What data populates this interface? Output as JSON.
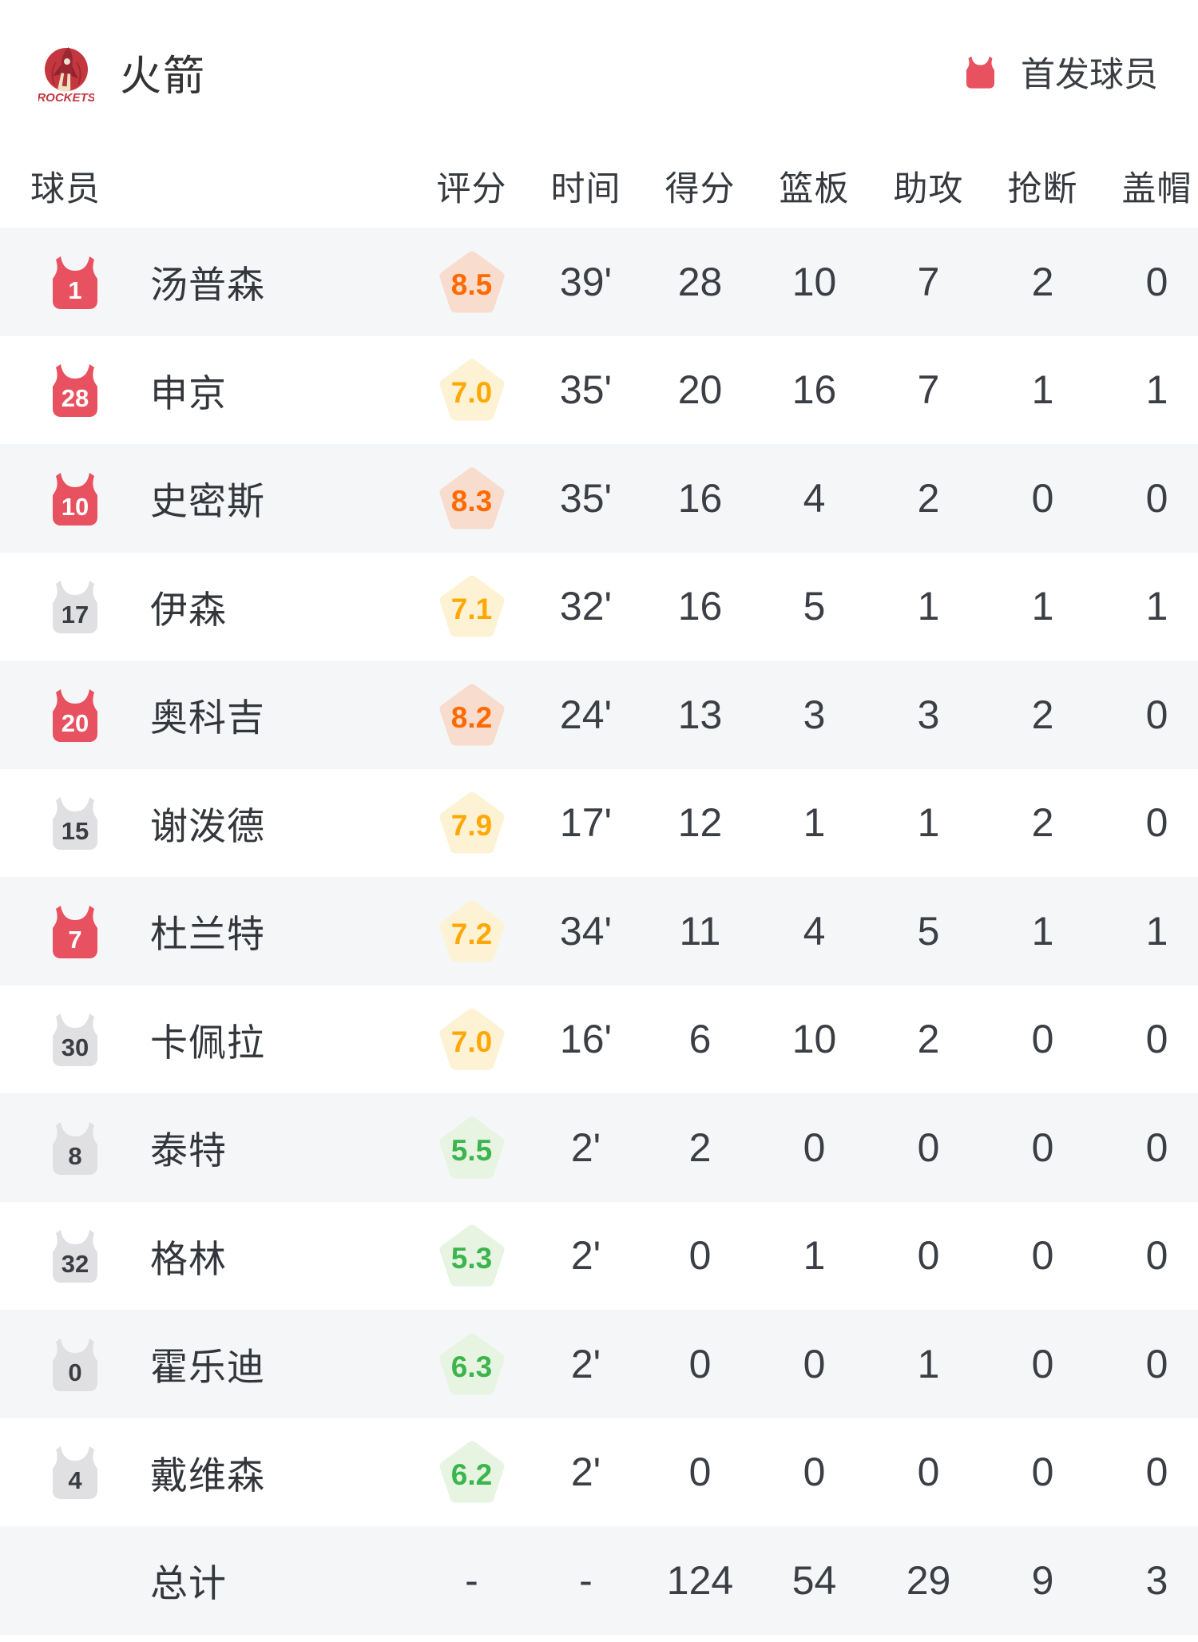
{
  "header": {
    "team_name": "火箭",
    "logo_text": "ROCKETS",
    "legend_label": "首发球员"
  },
  "table": {
    "columns": {
      "player": "球员",
      "stats": [
        "评分",
        "时间",
        "得分",
        "篮板",
        "助攻",
        "抢断",
        "盖帽"
      ]
    },
    "players": [
      {
        "number": "1",
        "name": "汤普森",
        "starter": true,
        "rating": "8.5",
        "tier": "orange",
        "time": "39'",
        "points": "28",
        "rebounds": "10",
        "assists": "7",
        "steals": "2",
        "blocks": "0"
      },
      {
        "number": "28",
        "name": "申京",
        "starter": true,
        "rating": "7.0",
        "tier": "yellow",
        "time": "35'",
        "points": "20",
        "rebounds": "16",
        "assists": "7",
        "steals": "1",
        "blocks": "1"
      },
      {
        "number": "10",
        "name": "史密斯",
        "starter": true,
        "rating": "8.3",
        "tier": "orange",
        "time": "35'",
        "points": "16",
        "rebounds": "4",
        "assists": "2",
        "steals": "0",
        "blocks": "0"
      },
      {
        "number": "17",
        "name": "伊森",
        "starter": false,
        "rating": "7.1",
        "tier": "yellow",
        "time": "32'",
        "points": "16",
        "rebounds": "5",
        "assists": "1",
        "steals": "1",
        "blocks": "1"
      },
      {
        "number": "20",
        "name": "奥科吉",
        "starter": true,
        "rating": "8.2",
        "tier": "orange",
        "time": "24'",
        "points": "13",
        "rebounds": "3",
        "assists": "3",
        "steals": "2",
        "blocks": "0"
      },
      {
        "number": "15",
        "name": "谢泼德",
        "starter": false,
        "rating": "7.9",
        "tier": "yellow",
        "time": "17'",
        "points": "12",
        "rebounds": "1",
        "assists": "1",
        "steals": "2",
        "blocks": "0"
      },
      {
        "number": "7",
        "name": "杜兰特",
        "starter": true,
        "rating": "7.2",
        "tier": "yellow",
        "time": "34'",
        "points": "11",
        "rebounds": "4",
        "assists": "5",
        "steals": "1",
        "blocks": "1"
      },
      {
        "number": "30",
        "name": "卡佩拉",
        "starter": false,
        "rating": "7.0",
        "tier": "yellow",
        "time": "16'",
        "points": "6",
        "rebounds": "10",
        "assists": "2",
        "steals": "0",
        "blocks": "0"
      },
      {
        "number": "8",
        "name": "泰特",
        "starter": false,
        "rating": "5.5",
        "tier": "green",
        "time": "2'",
        "points": "2",
        "rebounds": "0",
        "assists": "0",
        "steals": "0",
        "blocks": "0"
      },
      {
        "number": "32",
        "name": "格林",
        "starter": false,
        "rating": "5.3",
        "tier": "green",
        "time": "2'",
        "points": "0",
        "rebounds": "1",
        "assists": "0",
        "steals": "0",
        "blocks": "0"
      },
      {
        "number": "0",
        "name": "霍乐迪",
        "starter": false,
        "rating": "6.3",
        "tier": "green",
        "time": "2'",
        "points": "0",
        "rebounds": "0",
        "assists": "1",
        "steals": "0",
        "blocks": "0"
      },
      {
        "number": "4",
        "name": "戴维森",
        "starter": false,
        "rating": "6.2",
        "tier": "green",
        "time": "2'",
        "points": "0",
        "rebounds": "0",
        "assists": "0",
        "steals": "0",
        "blocks": "0"
      }
    ],
    "total": {
      "label": "总计",
      "values": [
        "-",
        "-",
        "124",
        "54",
        "29",
        "9",
        "3"
      ]
    }
  },
  "colors": {
    "accent_red": "#e8515f",
    "starter_jersey": "#e8515f",
    "starter_number": "#ffffff",
    "bench_jersey": "#e0e0e3",
    "bench_number": "#3a3d42",
    "row_alt_bg": "#f5f6f8",
    "logo_circle": "#c4373e",
    "tiers": {
      "orange": {
        "text": "#ff6a00",
        "bg": "#f8dccd"
      },
      "yellow": {
        "text": "#ffa805",
        "bg": "#fdf2d4"
      },
      "green": {
        "text": "#3cb54e",
        "bg": "#e6f4e1"
      }
    }
  }
}
